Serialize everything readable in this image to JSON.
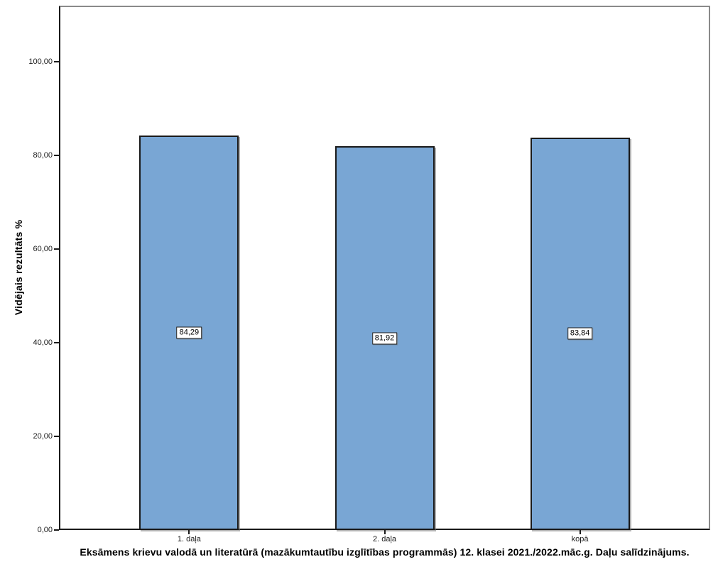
{
  "window": {
    "background": "#ffffff"
  },
  "colors": {
    "bar_fill": "#79a6d4",
    "bar_border": "#1a1a1a",
    "frame_gray": "#8a8a8a",
    "axis_black": "#1a1a1a",
    "label_box_bg": "#ffffff",
    "label_box_border": "#1a1a1a"
  },
  "chart_data": {
    "type": "bar",
    "title": "Eksāmens krievu valodā un literatūrā (mazākumtautību izglītības programmās) 12. klasei 2021./2022.māc.g. Daļu salīdzinājums.",
    "ylabel": "Vidējais rezultāts %",
    "xlabel": "",
    "categories": [
      "1. daļa",
      "2. daļa",
      "kopā"
    ],
    "values": [
      84.29,
      81.92,
      83.84
    ],
    "value_labels": [
      "84,29",
      "81,92",
      "83,84"
    ],
    "yticks": [
      0,
      20,
      40,
      60,
      80,
      100
    ],
    "ytick_labels": [
      "0,00",
      "20,00",
      "40,00",
      "60,00",
      "80,00",
      "100,00"
    ],
    "ylim": [
      0,
      112
    ],
    "grid": false,
    "legend": "none",
    "value_label_position": "middle-of-bar",
    "decimal_separator": ","
  }
}
